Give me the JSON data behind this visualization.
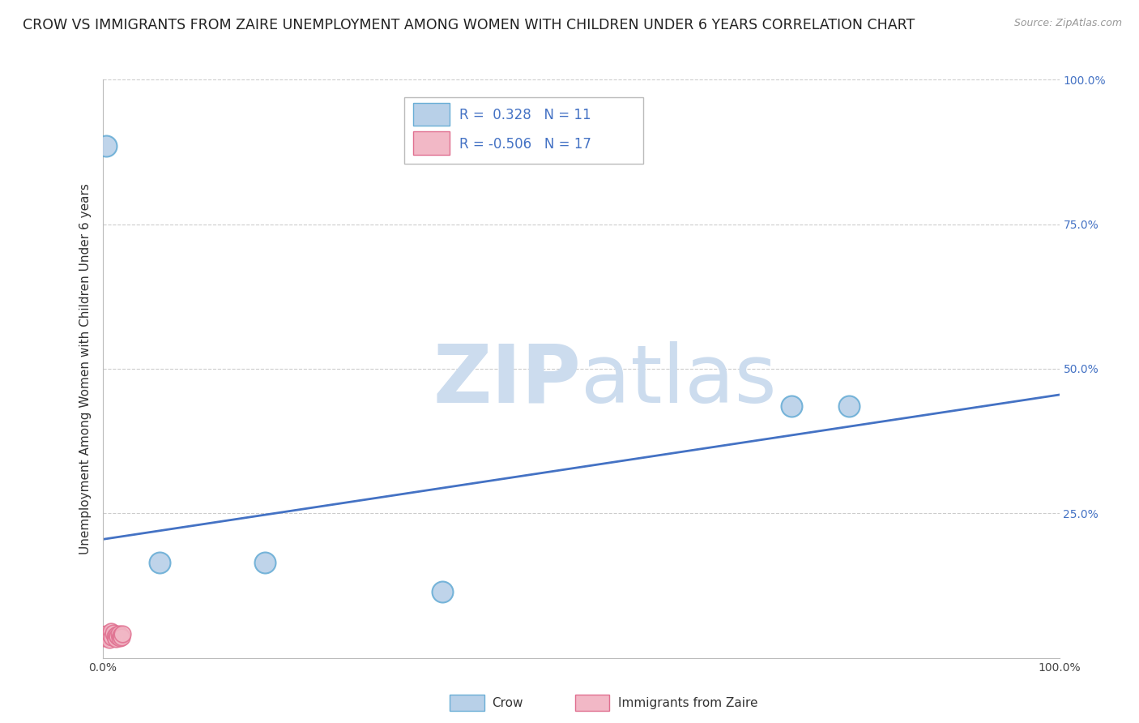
{
  "title": "CROW VS IMMIGRANTS FROM ZAIRE UNEMPLOYMENT AMONG WOMEN WITH CHILDREN UNDER 6 YEARS CORRELATION CHART",
  "source": "Source: ZipAtlas.com",
  "ylabel": "Unemployment Among Women with Children Under 6 years",
  "xlim": [
    0.0,
    1.0
  ],
  "ylim": [
    0.0,
    1.0
  ],
  "crow_color": "#b8d0e8",
  "crow_edge_color": "#6aaed6",
  "immigrants_color": "#f2b8c6",
  "immigrants_edge_color": "#e07090",
  "line_color": "#4472c4",
  "crow_points_x": [
    0.004,
    0.06,
    0.17,
    0.355,
    0.72,
    0.78
  ],
  "crow_points_y": [
    0.885,
    0.165,
    0.165,
    0.115,
    0.435,
    0.435
  ],
  "immigrants_points_x": [
    0.002,
    0.004,
    0.006,
    0.007,
    0.008,
    0.009,
    0.01,
    0.011,
    0.013,
    0.014,
    0.015,
    0.016,
    0.017,
    0.018,
    0.019,
    0.02,
    0.021
  ],
  "immigrants_points_y": [
    0.035,
    0.042,
    0.038,
    0.032,
    0.04,
    0.046,
    0.036,
    0.043,
    0.038,
    0.033,
    0.04,
    0.037,
    0.042,
    0.035,
    0.039,
    0.036,
    0.041
  ],
  "trendline_x": [
    0.0,
    1.0
  ],
  "trendline_y": [
    0.205,
    0.455
  ],
  "background_color": "#ffffff",
  "grid_color": "#cccccc",
  "title_fontsize": 12.5,
  "axis_label_fontsize": 11,
  "tick_fontsize": 10,
  "legend_fontsize": 12,
  "watermark_color": "#ccdcee",
  "right_axis_color": "#4472c4"
}
